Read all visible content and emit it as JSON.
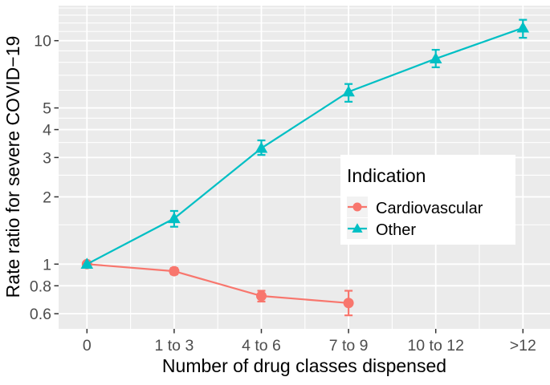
{
  "chart_data": {
    "type": "line",
    "xlabel": "Number of drug classes dispensed",
    "ylabel": "Rate ratio for severe COVID−19",
    "x_categories": [
      "0",
      "1 to 3",
      "4 to 6",
      "7 to 9",
      "10 to 12",
      ">12"
    ],
    "y_scale": "log10",
    "y_domain": [
      0.51,
      14.3
    ],
    "y_major_ticks": [
      {
        "value": 10,
        "label": "10"
      },
      {
        "value": 5,
        "label": "5"
      },
      {
        "value": 4,
        "label": "4"
      },
      {
        "value": 3,
        "label": "3"
      },
      {
        "value": 2,
        "label": "2"
      },
      {
        "value": 1,
        "label": "1"
      },
      {
        "value": 0.8,
        "label": "0.8"
      },
      {
        "value": 0.6,
        "label": "0.6"
      }
    ],
    "y_minor_gridlines": [
      1.5,
      2.5,
      3.5,
      4.5,
      6,
      7,
      8,
      9,
      11,
      12,
      13,
      14
    ],
    "grid": "on",
    "legend": {
      "title": "Indication",
      "position": "inside-right"
    },
    "panel": {
      "background": "#EBEBEB",
      "grid_color": "#FFFFFF",
      "legend_key_background": "#F2F2F2",
      "tick_color": "#333333",
      "tick_label_color": "#4D4D4D"
    },
    "series": [
      {
        "name": "Cardiovascular",
        "color": "#F8766D",
        "marker": "circle",
        "points": [
          {
            "category": "0",
            "rate_ratio": 1.0,
            "ci_low": null,
            "ci_high": null
          },
          {
            "category": "1 to 3",
            "rate_ratio": 0.93,
            "ci_low": 0.9,
            "ci_high": 0.96
          },
          {
            "category": "4 to 6",
            "rate_ratio": 0.72,
            "ci_low": 0.68,
            "ci_high": 0.76
          },
          {
            "category": "7 to 9",
            "rate_ratio": 0.67,
            "ci_low": 0.59,
            "ci_high": 0.76
          }
        ]
      },
      {
        "name": "Other",
        "color": "#00BFC4",
        "marker": "triangle",
        "points": [
          {
            "category": "0",
            "rate_ratio": 1.0,
            "ci_low": null,
            "ci_high": null
          },
          {
            "category": "1 to 3",
            "rate_ratio": 1.6,
            "ci_low": 1.47,
            "ci_high": 1.73
          },
          {
            "category": "4 to 6",
            "rate_ratio": 3.3,
            "ci_low": 3.08,
            "ci_high": 3.58
          },
          {
            "category": "7 to 9",
            "rate_ratio": 5.9,
            "ci_low": 5.33,
            "ci_high": 6.4
          },
          {
            "category": "10 to 12",
            "rate_ratio": 8.3,
            "ci_low": 7.6,
            "ci_high": 9.1
          },
          {
            "category": ">12",
            "rate_ratio": 11.4,
            "ci_low": 10.3,
            "ci_high": 12.4
          }
        ]
      }
    ]
  }
}
